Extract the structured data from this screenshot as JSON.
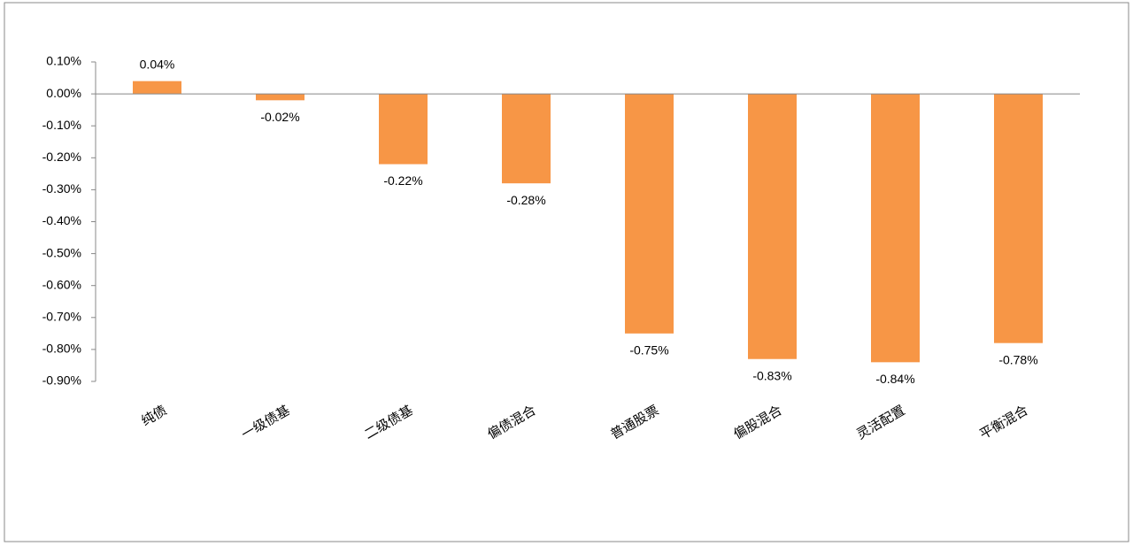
{
  "chart_data": {
    "type": "bar",
    "categories": [
      "纯债",
      "一级债基",
      "二级债基",
      "偏债混合",
      "普通股票",
      "偏股混合",
      "灵活配置",
      "平衡混合"
    ],
    "values": [
      0.04,
      -0.02,
      -0.22,
      -0.28,
      -0.75,
      -0.83,
      -0.84,
      -0.78
    ],
    "value_labels": [
      "0.04%",
      "-0.02%",
      "-0.22%",
      "-0.28%",
      "-0.75%",
      "-0.83%",
      "-0.84%",
      "-0.78%"
    ],
    "color": "#f79646",
    "ylim": [
      -0.9,
      0.1
    ],
    "yticks": [
      {
        "value": 0.1,
        "label": "0.10%"
      },
      {
        "value": 0,
        "label": "0.00%"
      },
      {
        "value": -0.1,
        "label": "-0.10%"
      },
      {
        "value": -0.2,
        "label": "-0.20%"
      },
      {
        "value": -0.3,
        "label": "-0.30%"
      },
      {
        "value": -0.4,
        "label": "-0.40%"
      },
      {
        "value": -0.5,
        "label": "-0.50%"
      },
      {
        "value": -0.6,
        "label": "-0.60%"
      },
      {
        "value": -0.7,
        "label": "-0.70%"
      },
      {
        "value": -0.8,
        "label": "-0.80%"
      },
      {
        "value": -0.9,
        "label": "-0.90%"
      }
    ],
    "grid": false
  }
}
